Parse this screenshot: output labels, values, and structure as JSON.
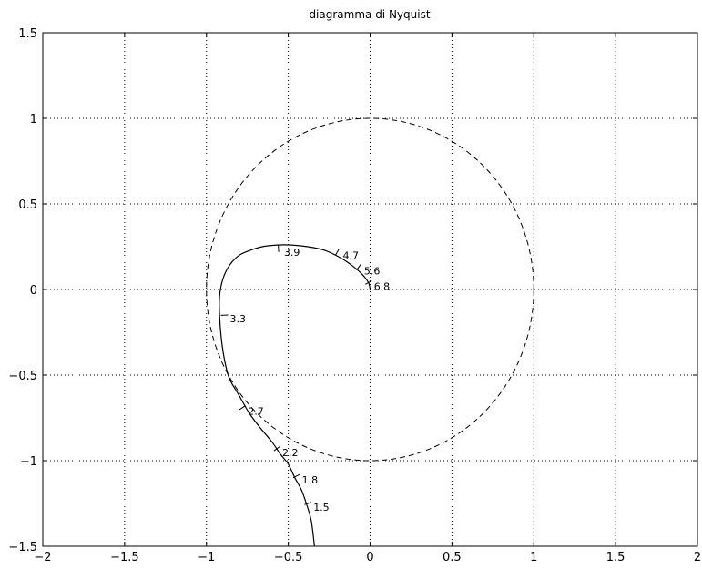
{
  "chart_data": {
    "type": "line",
    "title": "diagramma di Nyquist",
    "xlabel": "",
    "ylabel": "",
    "xlim": [
      -2,
      2
    ],
    "ylim": [
      -1.5,
      1.5
    ],
    "xticks": [
      -2,
      -1.5,
      -1,
      -0.5,
      0,
      0.5,
      1,
      1.5,
      2
    ],
    "yticks": [
      -1.5,
      -1,
      -0.5,
      0,
      0.5,
      1,
      1.5
    ],
    "xtick_labels": [
      "−2",
      "−1.5",
      "−1",
      "−0.5",
      "0",
      "0.5",
      "1",
      "1.5",
      "2"
    ],
    "ytick_labels": [
      "−1.5",
      "−1",
      "−0.5",
      "0",
      "0.5",
      "1",
      "1.5"
    ],
    "grid": true,
    "series": [
      {
        "style": "solid",
        "color": "#000000",
        "x": [
          -0.34,
          -0.36,
          -0.39,
          -0.42,
          -0.46,
          -0.5,
          -0.55,
          -0.6,
          -0.67,
          -0.74,
          -0.8,
          -0.86,
          -0.89,
          -0.91,
          -0.92,
          -0.92,
          -0.9,
          -0.86,
          -0.8,
          -0.73,
          -0.66,
          -0.57,
          -0.48,
          -0.38,
          -0.28,
          -0.19,
          -0.11,
          -0.05,
          -0.01,
          0.0
        ],
        "y": [
          -1.5,
          -1.35,
          -1.25,
          -1.17,
          -1.1,
          -1.02,
          -0.96,
          -0.89,
          -0.81,
          -0.72,
          -0.62,
          -0.52,
          -0.41,
          -0.28,
          -0.15,
          -0.04,
          0.06,
          0.14,
          0.2,
          0.23,
          0.25,
          0.26,
          0.26,
          0.25,
          0.23,
          0.19,
          0.14,
          0.09,
          0.04,
          0.0
        ]
      },
      {
        "style": "dashed",
        "color": "#000000",
        "circle": {
          "center": [
            0,
            0
          ],
          "radius": 1
        }
      }
    ],
    "annotations": [
      {
        "label": "1.5",
        "x": -0.38,
        "y": -1.25
      },
      {
        "label": "1.8",
        "x": -0.45,
        "y": -1.09
      },
      {
        "label": "2.2",
        "x": -0.57,
        "y": -0.93
      },
      {
        "label": "2.7",
        "x": -0.78,
        "y": -0.69
      },
      {
        "label": "3.3",
        "x": -0.89,
        "y": -0.15
      },
      {
        "label": "3.9",
        "x": -0.56,
        "y": 0.24
      },
      {
        "label": "4.7",
        "x": -0.2,
        "y": 0.22
      },
      {
        "label": "5.6",
        "x": -0.07,
        "y": 0.13
      },
      {
        "label": "6.8",
        "x": -0.01,
        "y": 0.04
      }
    ]
  }
}
